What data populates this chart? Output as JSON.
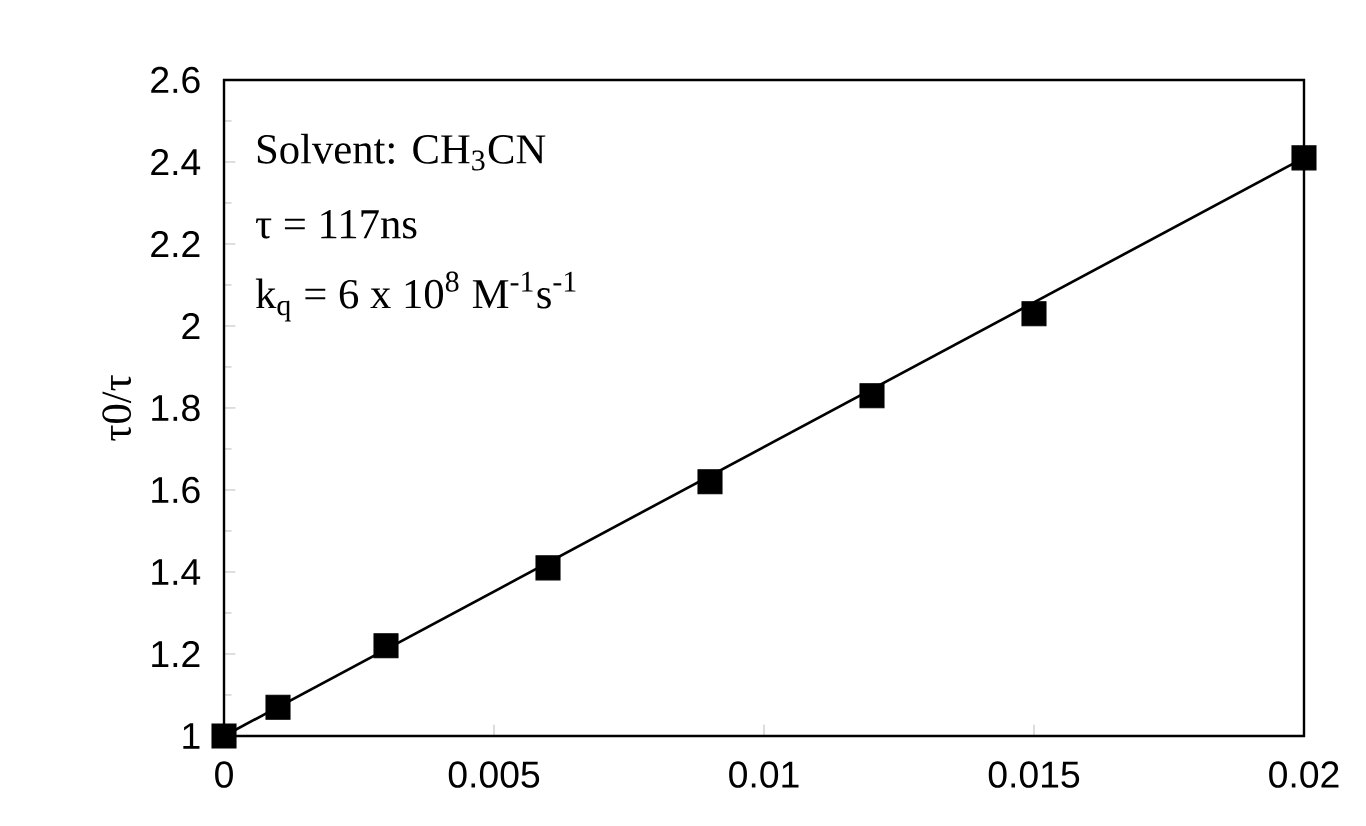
{
  "chart_data": {
    "type": "scatter",
    "ylabel": "τ0/τ",
    "xlim": [
      0,
      0.02
    ],
    "ylim": [
      1,
      2.6
    ],
    "xticks": [
      0,
      0.005,
      0.01,
      0.015,
      0.02
    ],
    "yticks": [
      1,
      1.2,
      1.4,
      1.6,
      1.8,
      2,
      2.2,
      2.4,
      2.6
    ],
    "grid": false,
    "annotations": [
      "Solvent:  CH$_{3}$CN",
      "τ = 117ns",
      "k$_{q}$ = 6 x 10$^{8}$ M$^{-1}$s$^{-1}$"
    ],
    "series": [
      {
        "marker": "square",
        "color": "#000000",
        "x": [
          0,
          0.001,
          0.003,
          0.006,
          0.009,
          0.012,
          0.015,
          0.02
        ],
        "values": [
          1.0,
          1.07,
          1.22,
          1.41,
          1.62,
          1.83,
          2.03,
          2.41
        ]
      },
      {
        "type": "line",
        "marker": "none",
        "color": "#000000",
        "line_style": "solid",
        "x": [
          0,
          0.02
        ],
        "values": [
          1.0,
          2.41
        ]
      }
    ]
  }
}
